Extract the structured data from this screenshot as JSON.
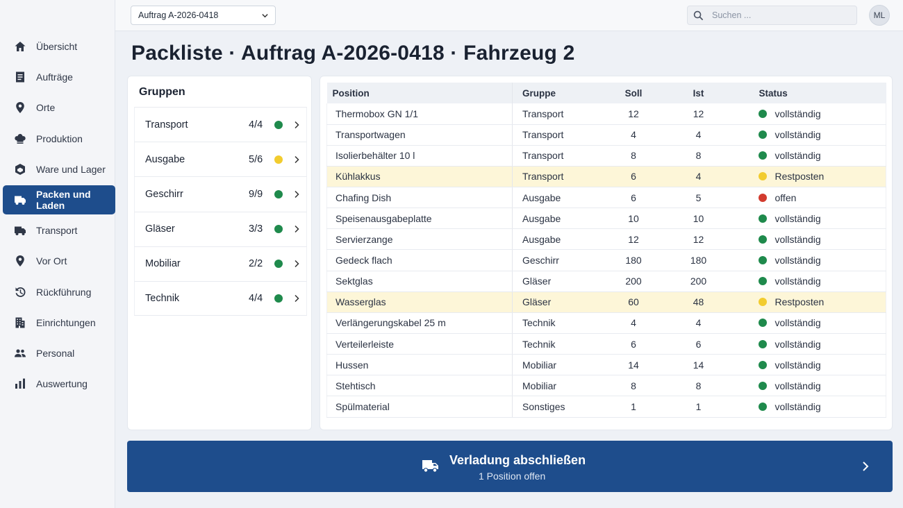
{
  "colors": {
    "accent": "#1e4d8c",
    "status_green": "#1f8a4c",
    "status_yellow": "#f2cc2e",
    "status_red": "#d23b2e",
    "warn_row": "#fdf6d8"
  },
  "sidebar": {
    "items": [
      {
        "label": "Übersicht",
        "icon": "home-icon",
        "active": false
      },
      {
        "label": "Aufträge",
        "icon": "document-icon",
        "active": false
      },
      {
        "label": "Orte",
        "icon": "location-pin-icon",
        "active": false
      },
      {
        "label": "Produktion",
        "icon": "chef-hat-icon",
        "active": false
      },
      {
        "label": "Ware und Lager",
        "icon": "box-icon",
        "active": false
      },
      {
        "label": "Packen und Laden",
        "icon": "truck-icon",
        "active": true
      },
      {
        "label": "Transport",
        "icon": "truck-icon",
        "active": false
      },
      {
        "label": "Vor Ort",
        "icon": "location-pin-icon",
        "active": false
      },
      {
        "label": "Rückführung",
        "icon": "history-icon",
        "active": false
      },
      {
        "label": "Einrichtungen",
        "icon": "building-icon",
        "active": false
      },
      {
        "label": "Personal",
        "icon": "people-icon",
        "active": false
      },
      {
        "label": "Auswertung",
        "icon": "bar-chart-icon",
        "active": false
      }
    ]
  },
  "topbar": {
    "order_select": "Auftrag A-2026-0418",
    "search_placeholder": "Suchen ...",
    "avatar_initials": "ML"
  },
  "page": {
    "title": "Packliste · Auftrag A-2026-0418 · Fahrzeug 2"
  },
  "groups": {
    "title": "Gruppen",
    "items": [
      {
        "name": "Transport",
        "count": "4/4",
        "status": "green"
      },
      {
        "name": "Ausgabe",
        "count": "5/6",
        "status": "yellow"
      },
      {
        "name": "Geschirr",
        "count": "9/9",
        "status": "green"
      },
      {
        "name": "Gläser",
        "count": "3/3",
        "status": "green"
      },
      {
        "name": "Mobiliar",
        "count": "2/2",
        "status": "green"
      },
      {
        "name": "Technik",
        "count": "4/4",
        "status": "green"
      }
    ]
  },
  "table": {
    "columns": [
      "Position",
      "Gruppe",
      "Soll",
      "Ist",
      "Status"
    ],
    "rows": [
      {
        "position": "Thermobox GN 1/1",
        "gruppe": "Transport",
        "soll": "12",
        "ist": "12",
        "status": "vollständig",
        "status_color": "green"
      },
      {
        "position": "Transportwagen",
        "gruppe": "Transport",
        "soll": "4",
        "ist": "4",
        "status": "vollständig",
        "status_color": "green"
      },
      {
        "position": "Isolierbehälter 10 l",
        "gruppe": "Transport",
        "soll": "8",
        "ist": "8",
        "status": "vollständig",
        "status_color": "green"
      },
      {
        "position": "Kühlakkus",
        "gruppe": "Transport",
        "soll": "6",
        "ist": "4",
        "status": "Restposten",
        "status_color": "yellow"
      },
      {
        "position": "Chafing Dish",
        "gruppe": "Ausgabe",
        "soll": "6",
        "ist": "5",
        "status": "offen",
        "status_color": "red"
      },
      {
        "position": "Speisenausgabeplatte",
        "gruppe": "Ausgabe",
        "soll": "10",
        "ist": "10",
        "status": "vollständig",
        "status_color": "green"
      },
      {
        "position": "Servierzange",
        "gruppe": "Ausgabe",
        "soll": "12",
        "ist": "12",
        "status": "vollständig",
        "status_color": "green"
      },
      {
        "position": "Gedeck flach",
        "gruppe": "Geschirr",
        "soll": "180",
        "ist": "180",
        "status": "vollständig",
        "status_color": "green"
      },
      {
        "position": "Sektglas",
        "gruppe": "Gläser",
        "soll": "200",
        "ist": "200",
        "status": "vollständig",
        "status_color": "green"
      },
      {
        "position": "Wasserglas",
        "gruppe": "Gläser",
        "soll": "60",
        "ist": "48",
        "status": "Restposten",
        "status_color": "yellow"
      },
      {
        "position": "Verlängerungskabel 25 m",
        "gruppe": "Technik",
        "soll": "4",
        "ist": "4",
        "status": "vollständig",
        "status_color": "green"
      },
      {
        "position": "Verteilerleiste",
        "gruppe": "Technik",
        "soll": "6",
        "ist": "6",
        "status": "vollständig",
        "status_color": "green"
      },
      {
        "position": "Hussen",
        "gruppe": "Mobiliar",
        "soll": "14",
        "ist": "14",
        "status": "vollständig",
        "status_color": "green"
      },
      {
        "position": "Stehtisch",
        "gruppe": "Mobiliar",
        "soll": "8",
        "ist": "8",
        "status": "vollständig",
        "status_color": "green"
      },
      {
        "position": "Spülmaterial",
        "gruppe": "Sonstiges",
        "soll": "1",
        "ist": "1",
        "status": "vollständig",
        "status_color": "green"
      }
    ]
  },
  "action": {
    "title": "Verladung abschließen",
    "subtitle": "1 Position offen",
    "icon": "truck-icon"
  }
}
